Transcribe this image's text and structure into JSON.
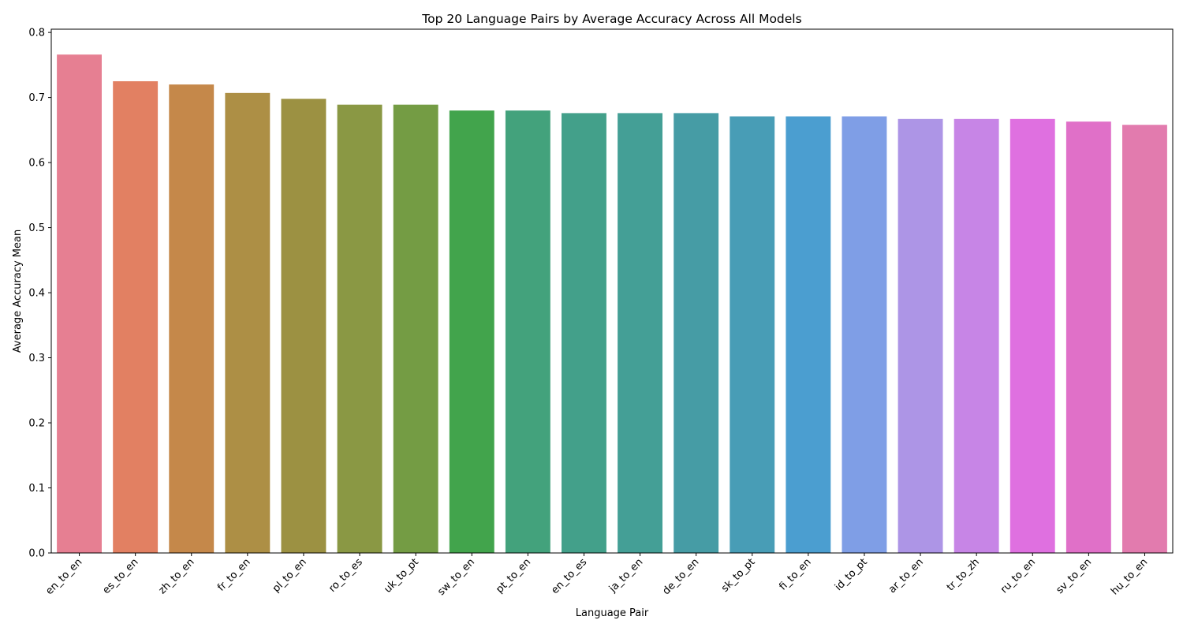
{
  "chart_data": {
    "type": "bar",
    "title": "Top 20 Language Pairs by Average Accuracy Across All Models",
    "xlabel": "Language Pair",
    "ylabel": "Average Accuracy Mean",
    "ylim": [
      0,
      0.805
    ],
    "yticks": [
      "0.0",
      "0.1",
      "0.2",
      "0.3",
      "0.4",
      "0.5",
      "0.6",
      "0.7",
      "0.8"
    ],
    "grid": false,
    "legend": "none",
    "categories": [
      "en_to_en",
      "es_to_en",
      "zh_to_en",
      "fr_to_en",
      "pl_to_en",
      "ro_to_es",
      "uk_to_pt",
      "sw_to_en",
      "pt_to_en",
      "en_to_es",
      "ja_to_en",
      "de_to_en",
      "sk_to_pt",
      "fi_to_en",
      "id_to_pt",
      "ar_to_en",
      "tr_to_zh",
      "ru_to_en",
      "sv_to_en",
      "hu_to_en"
    ],
    "values": [
      0.766,
      0.725,
      0.72,
      0.707,
      0.698,
      0.689,
      0.689,
      0.68,
      0.68,
      0.676,
      0.676,
      0.676,
      0.671,
      0.671,
      0.671,
      0.667,
      0.667,
      0.667,
      0.663,
      0.658
    ],
    "colors": [
      "#e67f92",
      "#e28062",
      "#c5884a",
      "#ad8f45",
      "#9c9142",
      "#8a9844",
      "#749c44",
      "#42a44c",
      "#43a27c",
      "#43a08a",
      "#449f96",
      "#469ca5",
      "#489db6",
      "#4b9ed0",
      "#7f9ee6",
      "#ad95e6",
      "#c785e6",
      "#df70e0",
      "#e070c8",
      "#e27bae"
    ]
  }
}
